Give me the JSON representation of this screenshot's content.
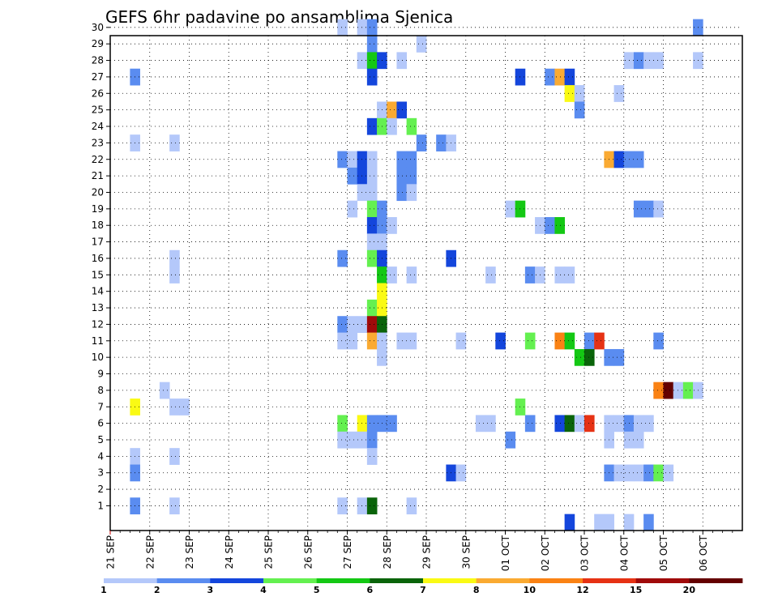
{
  "chart_data": {
    "type": "heatmap",
    "title": "GEFS 6hr padavine po ansamblima Sjenica",
    "xlabel": "",
    "ylabel": "",
    "x_tick_labels": [
      "21 SEP",
      "22 SEP",
      "23 SEP",
      "24 SEP",
      "25 SEP",
      "26 SEP",
      "27 SEP",
      "28 SEP",
      "29 SEP",
      "30 SEP",
      "01 OCT",
      "02 OCT",
      "03 OCT",
      "04 OCT",
      "05 OCT",
      "06 OCT"
    ],
    "y_tick_labels": [
      "1",
      "2",
      "3",
      "4",
      "5",
      "6",
      "7",
      "8",
      "9",
      "10",
      "11",
      "12",
      "13",
      "14",
      "15",
      "16",
      "17",
      "18",
      "19",
      "20",
      "21",
      "22",
      "23",
      "24",
      "25",
      "26",
      "27",
      "28",
      "29",
      "30"
    ],
    "time_steps_per_day": 4,
    "grid": true,
    "legend": "colorbar-bottom",
    "colorbar_labels": [
      "1",
      "2",
      "3",
      "4",
      "5",
      "6",
      "7",
      "8",
      "10",
      "12",
      "15",
      "20"
    ],
    "colorbar_colors": [
      "#b4c8fa",
      "#5a8cf0",
      "#1446dc",
      "#64f050",
      "#14c814",
      "#0a640a",
      "#fafa14",
      "#faaa32",
      "#fa8214",
      "#e63214",
      "#a00a0a",
      "#640000"
    ],
    "cells_note": "each cell: [ensemble member, time step index from 21 SEP 00z (6h steps), precipitation class index 0-11]",
    "cells": [
      [
        30,
        23,
        0
      ],
      [
        30,
        25,
        0
      ],
      [
        30,
        26,
        1
      ],
      [
        30,
        59,
        1
      ],
      [
        29,
        26,
        1
      ],
      [
        29,
        31,
        0
      ],
      [
        28,
        25,
        0
      ],
      [
        28,
        26,
        4
      ],
      [
        28,
        27,
        2
      ],
      [
        28,
        29,
        0
      ],
      [
        28,
        52,
        0
      ],
      [
        28,
        53,
        1
      ],
      [
        28,
        54,
        0
      ],
      [
        28,
        55,
        0
      ],
      [
        28,
        59,
        0
      ],
      [
        27,
        2,
        1
      ],
      [
        27,
        26,
        2
      ],
      [
        27,
        41,
        2
      ],
      [
        27,
        44,
        1
      ],
      [
        27,
        45,
        7
      ],
      [
        27,
        46,
        2
      ],
      [
        26,
        46,
        6
      ],
      [
        26,
        47,
        0
      ],
      [
        26,
        51,
        0
      ],
      [
        25,
        27,
        0
      ],
      [
        25,
        28,
        7
      ],
      [
        25,
        29,
        2
      ],
      [
        25,
        47,
        1
      ],
      [
        24,
        26,
        2
      ],
      [
        24,
        27,
        3
      ],
      [
        24,
        28,
        0
      ],
      [
        24,
        30,
        3
      ],
      [
        23,
        2,
        0
      ],
      [
        23,
        6,
        0
      ],
      [
        23,
        31,
        1
      ],
      [
        23,
        33,
        1
      ],
      [
        23,
        34,
        0
      ],
      [
        22,
        23,
        1
      ],
      [
        22,
        24,
        0
      ],
      [
        22,
        25,
        2
      ],
      [
        22,
        26,
        0
      ],
      [
        22,
        29,
        1
      ],
      [
        22,
        30,
        1
      ],
      [
        22,
        50,
        7
      ],
      [
        22,
        51,
        2
      ],
      [
        22,
        52,
        1
      ],
      [
        22,
        53,
        1
      ],
      [
        21,
        24,
        1
      ],
      [
        21,
        25,
        2
      ],
      [
        21,
        26,
        0
      ],
      [
        21,
        29,
        1
      ],
      [
        21,
        30,
        1
      ],
      [
        20,
        25,
        0
      ],
      [
        20,
        26,
        0
      ],
      [
        20,
        29,
        1
      ],
      [
        20,
        30,
        0
      ],
      [
        19,
        24,
        0
      ],
      [
        19,
        26,
        3
      ],
      [
        19,
        27,
        1
      ],
      [
        19,
        40,
        0
      ],
      [
        19,
        41,
        4
      ],
      [
        19,
        53,
        1
      ],
      [
        19,
        54,
        1
      ],
      [
        19,
        55,
        0
      ],
      [
        18,
        26,
        2
      ],
      [
        18,
        27,
        1
      ],
      [
        18,
        28,
        0
      ],
      [
        18,
        43,
        0
      ],
      [
        18,
        44,
        1
      ],
      [
        18,
        45,
        4
      ],
      [
        17,
        26,
        0
      ],
      [
        17,
        27,
        0
      ],
      [
        16,
        6,
        0
      ],
      [
        16,
        23,
        1
      ],
      [
        16,
        26,
        3
      ],
      [
        16,
        27,
        2
      ],
      [
        16,
        34,
        2
      ],
      [
        15,
        6,
        0
      ],
      [
        15,
        27,
        4
      ],
      [
        15,
        28,
        0
      ],
      [
        15,
        30,
        0
      ],
      [
        15,
        38,
        0
      ],
      [
        15,
        42,
        1
      ],
      [
        15,
        43,
        0
      ],
      [
        15,
        45,
        0
      ],
      [
        15,
        46,
        0
      ],
      [
        14,
        27,
        6
      ],
      [
        13,
        26,
        3
      ],
      [
        13,
        27,
        6
      ],
      [
        12,
        23,
        1
      ],
      [
        12,
        24,
        0
      ],
      [
        12,
        25,
        0
      ],
      [
        12,
        26,
        10
      ],
      [
        12,
        27,
        5
      ],
      [
        11,
        23,
        0
      ],
      [
        11,
        24,
        0
      ],
      [
        11,
        26,
        7
      ],
      [
        11,
        27,
        0
      ],
      [
        11,
        29,
        0
      ],
      [
        11,
        30,
        0
      ],
      [
        11,
        35,
        0
      ],
      [
        11,
        39,
        2
      ],
      [
        11,
        42,
        3
      ],
      [
        11,
        45,
        8
      ],
      [
        11,
        46,
        4
      ],
      [
        11,
        48,
        1
      ],
      [
        11,
        49,
        9
      ],
      [
        11,
        55,
        1
      ],
      [
        10,
        27,
        0
      ],
      [
        10,
        47,
        4
      ],
      [
        10,
        48,
        5
      ],
      [
        10,
        50,
        1
      ],
      [
        10,
        51,
        1
      ],
      [
        8,
        5,
        0
      ],
      [
        8,
        55,
        8
      ],
      [
        8,
        56,
        11
      ],
      [
        8,
        57,
        0
      ],
      [
        8,
        58,
        3
      ],
      [
        8,
        59,
        0
      ],
      [
        7,
        2,
        6
      ],
      [
        7,
        6,
        0
      ],
      [
        7,
        7,
        0
      ],
      [
        7,
        41,
        3
      ],
      [
        6,
        23,
        3
      ],
      [
        6,
        25,
        6
      ],
      [
        6,
        26,
        1
      ],
      [
        6,
        27,
        1
      ],
      [
        6,
        28,
        1
      ],
      [
        6,
        37,
        0
      ],
      [
        6,
        38,
        0
      ],
      [
        6,
        42,
        1
      ],
      [
        6,
        45,
        2
      ],
      [
        6,
        46,
        5
      ],
      [
        6,
        47,
        0
      ],
      [
        6,
        48,
        9
      ],
      [
        6,
        50,
        0
      ],
      [
        6,
        51,
        0
      ],
      [
        6,
        52,
        1
      ],
      [
        6,
        53,
        0
      ],
      [
        6,
        54,
        0
      ],
      [
        5,
        23,
        0
      ],
      [
        5,
        24,
        0
      ],
      [
        5,
        25,
        0
      ],
      [
        5,
        26,
        1
      ],
      [
        5,
        40,
        1
      ],
      [
        5,
        50,
        0
      ],
      [
        5,
        52,
        0
      ],
      [
        5,
        53,
        0
      ],
      [
        4,
        2,
        0
      ],
      [
        4,
        6,
        0
      ],
      [
        4,
        26,
        0
      ],
      [
        3,
        2,
        1
      ],
      [
        3,
        34,
        2
      ],
      [
        3,
        35,
        0
      ],
      [
        3,
        50,
        1
      ],
      [
        3,
        51,
        0
      ],
      [
        3,
        52,
        0
      ],
      [
        3,
        53,
        0
      ],
      [
        3,
        54,
        1
      ],
      [
        3,
        55,
        3
      ],
      [
        3,
        56,
        0
      ],
      [
        1,
        2,
        1
      ],
      [
        1,
        6,
        0
      ],
      [
        1,
        23,
        0
      ],
      [
        1,
        25,
        0
      ],
      [
        1,
        26,
        5
      ],
      [
        1,
        30,
        0
      ],
      [
        0,
        46,
        2
      ],
      [
        0,
        49,
        0
      ],
      [
        0,
        50,
        0
      ],
      [
        0,
        52,
        0
      ],
      [
        0,
        54,
        1
      ]
    ]
  }
}
